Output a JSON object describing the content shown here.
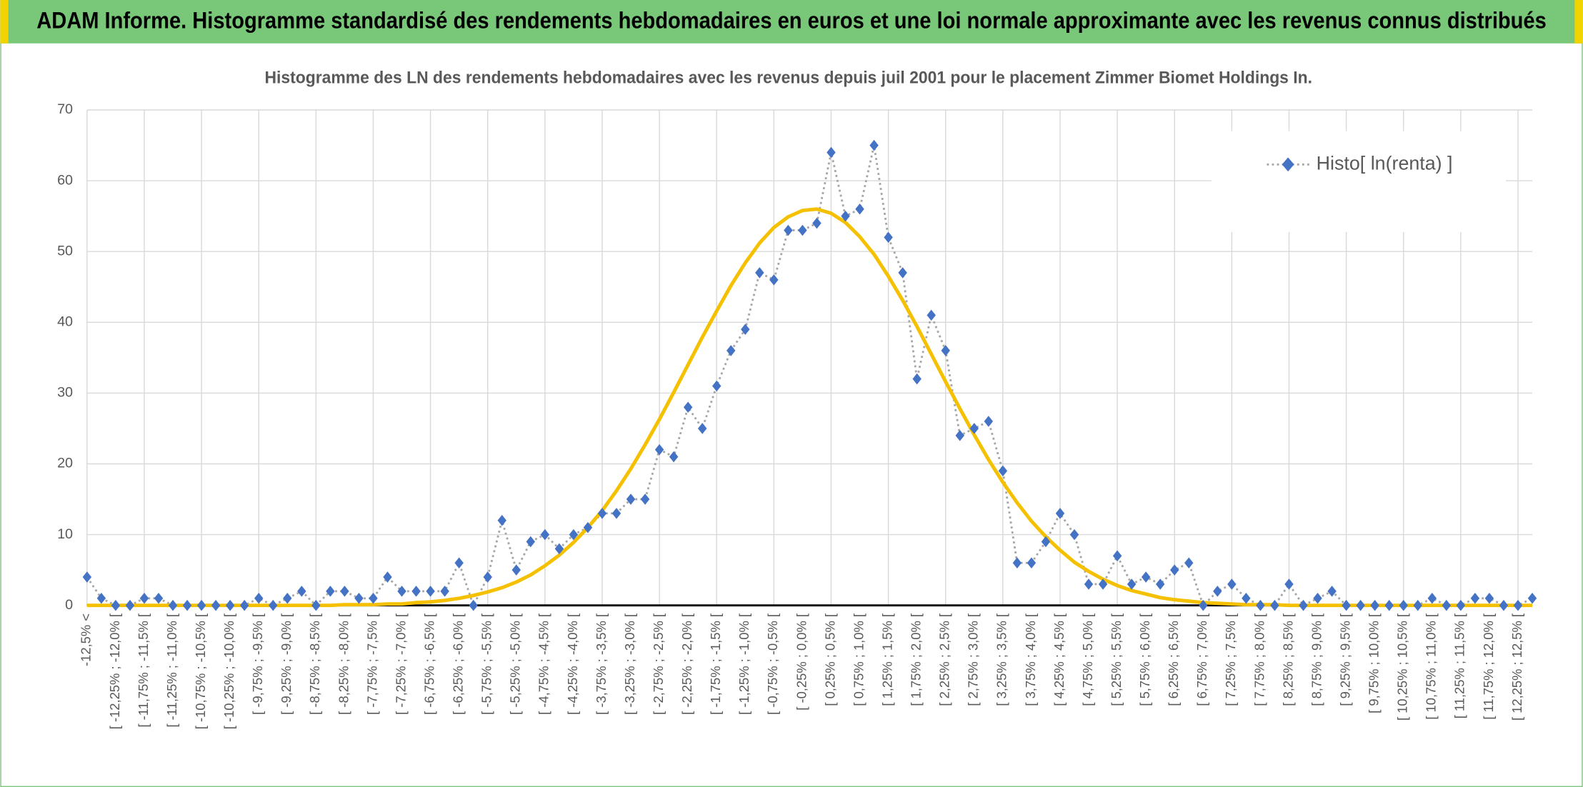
{
  "header": {
    "title": "ADAM Informe. Histogramme standardisé des rendements hebdomadaires en euros et une loi normale approximante avec les revenus connus distribués"
  },
  "chart_data": {
    "type": "line",
    "title": "Histogramme des LN des rendements hebdomadaires avec les revenus depuis juil 2001 pour le placement Zimmer Biomet Holdings In.",
    "categories": [
      "-12,5% <",
      null,
      "[ -12,25% ; -12,0% [",
      null,
      "[ -11,75% ; -11,5% [",
      null,
      "[ -11,25% ; -11,0% [",
      null,
      "[ -10,75% ; -10,5% [",
      null,
      "[ -10,25% ; -10,0% [",
      null,
      "[ -9,75% ; -9,5% [",
      null,
      "[ -9,25% ; -9,0% [",
      null,
      "[ -8,75% ; -8,5% [",
      null,
      "[ -8,25% ; -8,0% [",
      null,
      "[ -7,75% ; -7,5% [",
      null,
      "[ -7,25% ; -7,0% [",
      null,
      "[ -6,75% ; -6,5% [",
      null,
      "[ -6,25% ; -6,0% [",
      null,
      "[ -5,75% ; -5,5% [",
      null,
      "[ -5,25% ; -5,0% [",
      null,
      "[ -4,75% ; -4,5% [",
      null,
      "[ -4,25% ; -4,0% [",
      null,
      "[ -3,75% ; -3,5% [",
      null,
      "[ -3,25% ; -3,0% [",
      null,
      "[ -2,75% ; -2,5% [",
      null,
      "[ -2,25% ; -2,0% [",
      null,
      "[ -1,75% ; -1,5% [",
      null,
      "[ -1,25% ; -1,0% [",
      null,
      "[ -0,75% ; -0,5% [",
      null,
      "[ -0,25% ; 0,0% [",
      null,
      "[ 0,25% ; 0,5% [",
      null,
      "[ 0,75% ; 1,0% [",
      null,
      "[ 1,25% ; 1,5% [",
      null,
      "[ 1,75% ; 2,0% [",
      null,
      "[ 2,25% ; 2,5% [",
      null,
      "[ 2,75% ; 3,0% [",
      null,
      "[ 3,25% ; 3,5% [",
      null,
      "[ 3,75% ; 4,0% [",
      null,
      "[ 4,25% ; 4,5% [",
      null,
      "[ 4,75% ; 5,0% [",
      null,
      "[ 5,25% ; 5,5% [",
      null,
      "[ 5,75% ; 6,0% [",
      null,
      "[ 6,25% ; 6,5% [",
      null,
      "[ 6,75% ; 7,0% [",
      null,
      "[ 7,25% ; 7,5% [",
      null,
      "[ 7,75% ; 8,0% [",
      null,
      "[ 8,25% ; 8,5% [",
      null,
      "[ 8,75% ; 9,0% [",
      null,
      "[ 9,25% ; 9,5% [",
      null,
      "[ 9,75% ; 10,0% [",
      null,
      "[ 10,25% ; 10,5% [",
      null,
      "[ 10,75% ; 11,0% [",
      null,
      "[ 11,25% ; 11,5% [",
      null,
      "[ 11,75% ; 12,0% [",
      null,
      "[ 12,25% ; 12,5% [",
      null
    ],
    "series": [
      {
        "name": "Histo[ ln(renta) ]",
        "color": "#4472c4",
        "line_color": "#a6a6a6",
        "values": [
          4,
          1,
          0,
          0,
          1,
          1,
          0,
          0,
          0,
          0,
          0,
          0,
          1,
          0,
          1,
          2,
          0,
          2,
          2,
          1,
          1,
          4,
          2,
          2,
          2,
          2,
          6,
          0,
          4,
          12,
          5,
          9,
          10,
          8,
          10,
          11,
          13,
          13,
          15,
          15,
          22,
          21,
          28,
          25,
          31,
          36,
          39,
          47,
          46,
          53,
          53,
          54,
          64,
          55,
          56,
          65,
          52,
          47,
          32,
          41,
          36,
          24,
          25,
          26,
          19,
          6,
          6,
          9,
          13,
          10,
          3,
          3,
          7,
          3,
          4,
          3,
          5,
          6,
          0,
          2,
          3,
          1,
          0,
          0,
          3,
          0,
          1,
          2,
          0,
          0,
          0,
          0,
          0,
          0,
          1,
          0,
          0,
          1,
          1,
          0,
          0,
          1
        ]
      },
      {
        "color": "#f5c000",
        "values": [
          0,
          0,
          0,
          0,
          0,
          0,
          0,
          0,
          0,
          0,
          0,
          0,
          0,
          0,
          0,
          0,
          0,
          0,
          0.1,
          0.1,
          0.1,
          0.2,
          0.2,
          0.4,
          0.5,
          0.7,
          1.0,
          1.4,
          1.9,
          2.5,
          3.3,
          4.3,
          5.6,
          7.1,
          8.9,
          11.0,
          13.4,
          16.2,
          19.3,
          22.7,
          26.3,
          30.1,
          34.0,
          37.9,
          41.6,
          45.2,
          48.4,
          51.2,
          53.4,
          54.9,
          55.8,
          56.0,
          55.4,
          54.1,
          52.1,
          49.6,
          46.5,
          43.1,
          39.4,
          35.5,
          31.6,
          27.8,
          24.1,
          20.6,
          17.4,
          14.5,
          11.9,
          9.7,
          7.8,
          6.1,
          4.8,
          3.7,
          2.8,
          2.1,
          1.6,
          1.1,
          0.8,
          0.6,
          0.4,
          0.3,
          0.2,
          0.1,
          0.1,
          0.1,
          0,
          0,
          0,
          0,
          0,
          0,
          0,
          0,
          0,
          0,
          0,
          0,
          0,
          0,
          0,
          0,
          0,
          0
        ]
      }
    ],
    "ylim": [
      0,
      70
    ],
    "yticks": [
      0,
      10,
      20,
      30,
      40,
      50,
      60,
      70
    ],
    "grid": true,
    "legend": "upper right"
  }
}
